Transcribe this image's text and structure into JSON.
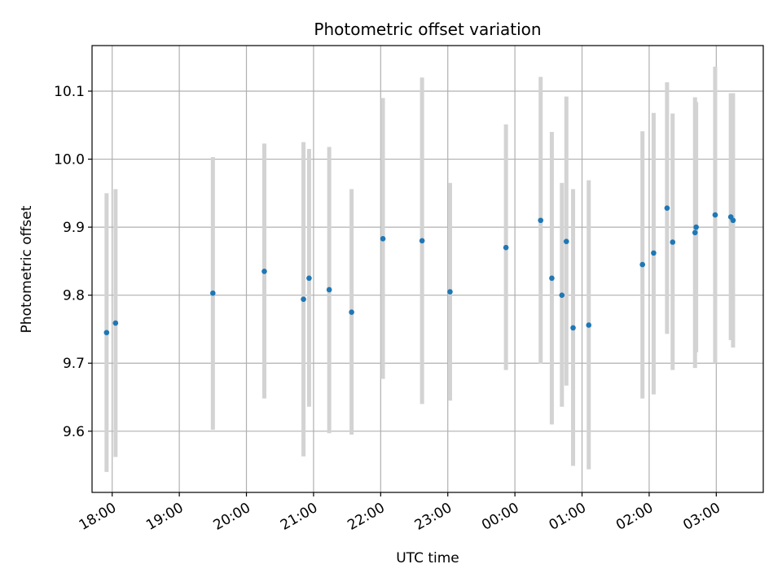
{
  "chart_data": {
    "type": "scatter",
    "title": "Photometric offset variation",
    "xlabel": "UTC time",
    "ylabel": "Photometric offset",
    "grid": true,
    "x_unit": "hour of day (UTC), continuing past midnight",
    "xlim": [
      "17:42",
      "03:42"
    ],
    "ylim": [
      9.51,
      10.167
    ],
    "x_ticks": [
      "18:00",
      "19:00",
      "20:00",
      "21:00",
      "22:00",
      "23:00",
      "00:00",
      "01:00",
      "02:00",
      "03:00"
    ],
    "y_ticks": [
      9.6,
      9.7,
      9.8,
      9.9,
      10.0,
      10.1
    ],
    "y_tick_labels": [
      "9.6",
      "9.7",
      "9.8",
      "9.9",
      "10.0",
      "10.1"
    ],
    "point_color": "#1f77b4",
    "errorbar_color": "#d3d3d3",
    "points": [
      {
        "x": "17:55",
        "y": 9.745,
        "ylow": 9.54,
        "yhigh": 9.95
      },
      {
        "x": "18:03",
        "y": 9.759,
        "ylow": 9.562,
        "yhigh": 9.956
      },
      {
        "x": "19:30",
        "y": 9.803,
        "ylow": 9.602,
        "yhigh": 10.003
      },
      {
        "x": "20:16",
        "y": 9.835,
        "ylow": 9.648,
        "yhigh": 10.023
      },
      {
        "x": "20:51",
        "y": 9.794,
        "ylow": 9.563,
        "yhigh": 10.025
      },
      {
        "x": "20:56",
        "y": 9.825,
        "ylow": 9.636,
        "yhigh": 10.015
      },
      {
        "x": "21:14",
        "y": 9.808,
        "ylow": 9.597,
        "yhigh": 10.018
      },
      {
        "x": "21:34",
        "y": 9.775,
        "ylow": 9.595,
        "yhigh": 9.956
      },
      {
        "x": "22:02",
        "y": 9.883,
        "ylow": 9.677,
        "yhigh": 10.09
      },
      {
        "x": "22:37",
        "y": 9.88,
        "ylow": 9.64,
        "yhigh": 10.12
      },
      {
        "x": "23:02",
        "y": 9.805,
        "ylow": 9.645,
        "yhigh": 9.965
      },
      {
        "x": "23:52",
        "y": 9.87,
        "ylow": 9.69,
        "yhigh": 10.051
      },
      {
        "x": "00:23",
        "y": 9.91,
        "ylow": 9.699,
        "yhigh": 10.121
      },
      {
        "x": "00:33",
        "y": 9.825,
        "ylow": 9.61,
        "yhigh": 10.04
      },
      {
        "x": "00:42",
        "y": 9.8,
        "ylow": 9.636,
        "yhigh": 9.965
      },
      {
        "x": "00:46",
        "y": 9.879,
        "ylow": 9.667,
        "yhigh": 10.092
      },
      {
        "x": "00:52",
        "y": 9.752,
        "ylow": 9.549,
        "yhigh": 9.956
      },
      {
        "x": "01:06",
        "y": 9.756,
        "ylow": 9.544,
        "yhigh": 9.969
      },
      {
        "x": "01:54",
        "y": 9.845,
        "ylow": 9.648,
        "yhigh": 10.041
      },
      {
        "x": "02:04",
        "y": 9.862,
        "ylow": 9.654,
        "yhigh": 10.068
      },
      {
        "x": "02:16",
        "y": 9.928,
        "ylow": 9.743,
        "yhigh": 10.113
      },
      {
        "x": "02:21",
        "y": 9.878,
        "ylow": 9.69,
        "yhigh": 10.067
      },
      {
        "x": "02:41",
        "y": 9.892,
        "ylow": 9.693,
        "yhigh": 10.091
      },
      {
        "x": "02:42",
        "y": 9.9,
        "ylow": 9.716,
        "yhigh": 10.084
      },
      {
        "x": "02:59",
        "y": 9.918,
        "ylow": 9.7,
        "yhigh": 10.136
      },
      {
        "x": "03:13",
        "y": 9.915,
        "ylow": 9.734,
        "yhigh": 10.097
      },
      {
        "x": "03:15",
        "y": 9.91,
        "ylow": 9.723,
        "yhigh": 10.097
      }
    ]
  }
}
